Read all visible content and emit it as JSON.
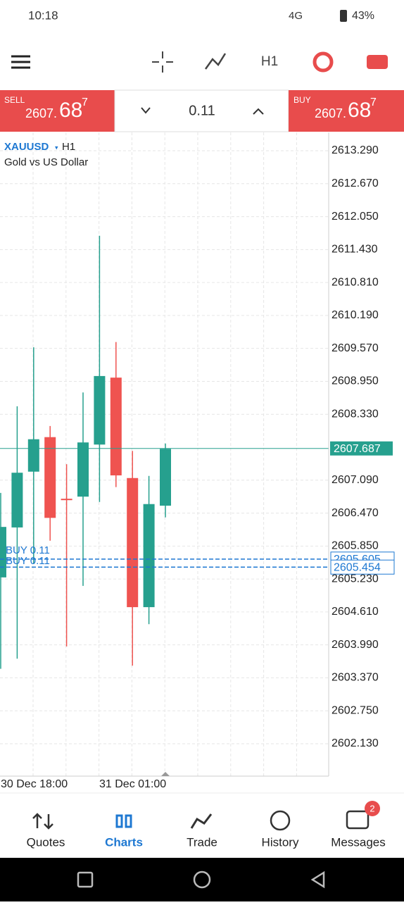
{
  "status_bar": {
    "time": "10:18",
    "network": "4G",
    "battery": "43%"
  },
  "toolbar": {
    "timeframe": "H1"
  },
  "trade_bar": {
    "sell": {
      "label": "SELL",
      "price_main": "2607.",
      "price_big": "68",
      "price_sup": "7"
    },
    "volume": "0.11",
    "buy": {
      "label": "BUY",
      "price_main": "2607.",
      "price_big": "68",
      "price_sup": "7"
    }
  },
  "chart": {
    "symbol": "XAUUSD",
    "timeframe": "H1",
    "description": "Gold vs US Dollar",
    "ylim": [
      2601.52,
      2613.635
    ],
    "yticks": [
      {
        "value": 2613.29,
        "label": "2613.290"
      },
      {
        "value": 2612.67,
        "label": "2612.670"
      },
      {
        "value": 2612.05,
        "label": "2612.050"
      },
      {
        "value": 2611.43,
        "label": "2611.430"
      },
      {
        "value": 2610.81,
        "label": "2610.810"
      },
      {
        "value": 2610.19,
        "label": "2610.190"
      },
      {
        "value": 2609.57,
        "label": "2609.570"
      },
      {
        "value": 2608.95,
        "label": "2608.950"
      },
      {
        "value": 2608.33,
        "label": "2608.330"
      },
      {
        "value": 2607.09,
        "label": "2607.090"
      },
      {
        "value": 2606.47,
        "label": "2606.470"
      },
      {
        "value": 2605.85,
        "label": "2605.850"
      },
      {
        "value": 2605.23,
        "label": "2605.230"
      },
      {
        "value": 2604.61,
        "label": "2604.610"
      },
      {
        "value": 2603.99,
        "label": "2603.990"
      },
      {
        "value": 2603.37,
        "label": "2603.370"
      },
      {
        "value": 2602.75,
        "label": "2602.750"
      },
      {
        "value": 2602.13,
        "label": "2602.130"
      }
    ],
    "candles": [
      {
        "open": 2605.26,
        "high": 2606.85,
        "low": 2603.54,
        "close": 2606.21
      },
      {
        "open": 2606.2,
        "high": 2608.48,
        "low": 2603.73,
        "close": 2607.23
      },
      {
        "open": 2607.25,
        "high": 2609.59,
        "low": 2605.52,
        "close": 2607.86
      },
      {
        "open": 2607.9,
        "high": 2608.11,
        "low": 2605.95,
        "close": 2606.38
      },
      {
        "open": 2606.74,
        "high": 2607.39,
        "low": 2603.96,
        "close": 2606.72
      },
      {
        "open": 2606.78,
        "high": 2608.74,
        "low": 2605.1,
        "close": 2607.8
      },
      {
        "open": 2607.76,
        "high": 2611.69,
        "low": 2606.68,
        "close": 2609.05
      },
      {
        "open": 2609.02,
        "high": 2609.69,
        "low": 2606.96,
        "close": 2607.18
      },
      {
        "open": 2607.13,
        "high": 2607.64,
        "low": 2603.6,
        "close": 2604.7
      },
      {
        "open": 2604.7,
        "high": 2607.17,
        "low": 2604.38,
        "close": 2606.64
      },
      {
        "open": 2606.61,
        "high": 2607.78,
        "low": 2606.39,
        "close": 2607.68
      }
    ],
    "current_price": 2607.687,
    "orders": [
      {
        "label": "BUY 0.11",
        "price": 2605.605
      },
      {
        "label": "BUY 0.11",
        "price": 2605.454
      }
    ],
    "x_labels": [
      "30 Dec 18:00",
      "31 Dec 01:00"
    ]
  },
  "nav": [
    {
      "label": "Quotes"
    },
    {
      "label": "Charts"
    },
    {
      "label": "Trade"
    },
    {
      "label": "History"
    },
    {
      "label": "Messages",
      "badge": "2"
    }
  ]
}
